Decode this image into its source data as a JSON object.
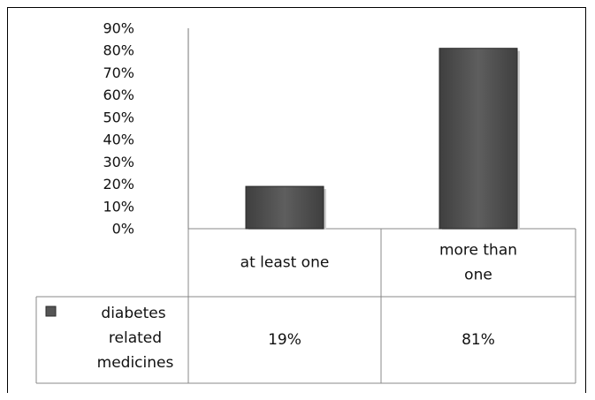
{
  "chart_data": {
    "type": "bar",
    "categories": [
      "at least one",
      "more than one"
    ],
    "category_lines": [
      [
        "at least one"
      ],
      [
        "more than",
        "one"
      ]
    ],
    "series": [
      {
        "name": "diabetes related medicines",
        "name_lines": [
          "diabetes",
          "related",
          "medicines"
        ],
        "values": [
          19,
          81
        ],
        "color": "#555555"
      }
    ],
    "data_table": [
      [
        "19%",
        "81%"
      ]
    ],
    "yticks": [
      "0%",
      "10%",
      "20%",
      "30%",
      "40%",
      "50%",
      "60%",
      "70%",
      "80%",
      "90%"
    ],
    "ylim": [
      0,
      90
    ],
    "grid": false,
    "legend": "data-table"
  }
}
